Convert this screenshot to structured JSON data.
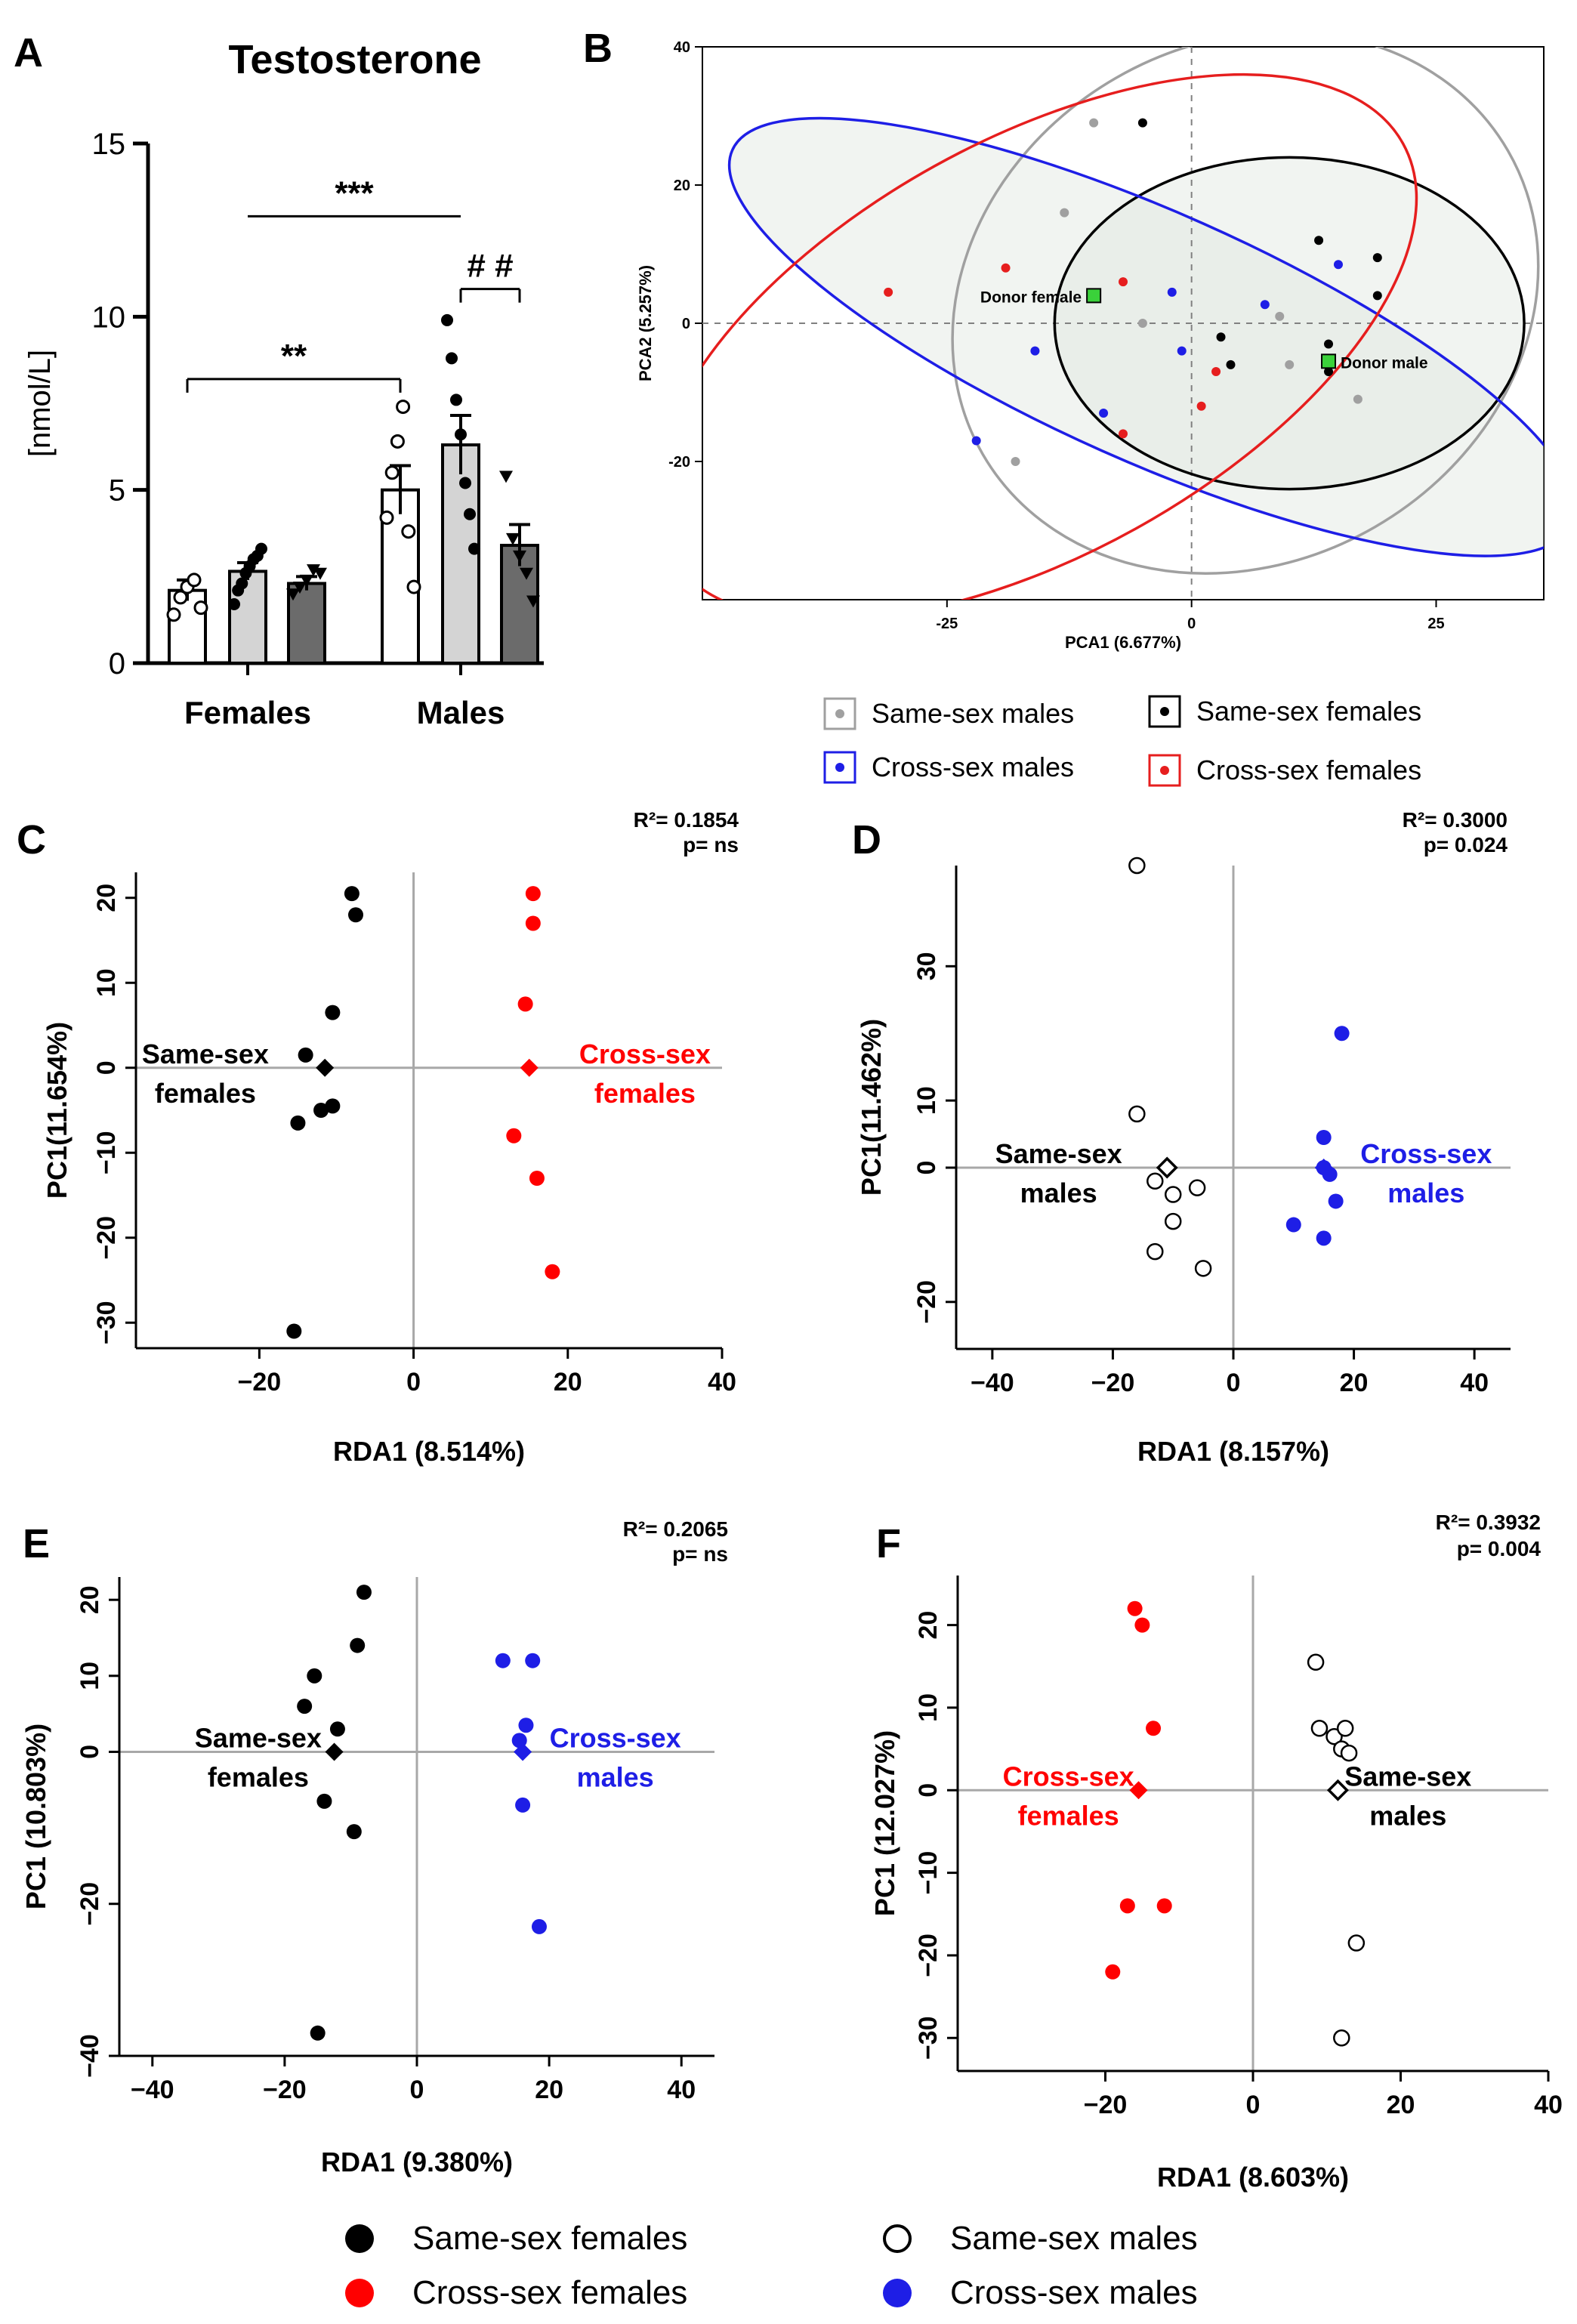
{
  "panel_letters": [
    "A",
    "B",
    "C",
    "D",
    "E",
    "F"
  ],
  "chart_data": [
    {
      "id": "A",
      "type": "bar",
      "title": "Testosterone",
      "ylabel": "[nmol/L]",
      "ylim": [
        0,
        15
      ],
      "yticks": [
        "0",
        "5",
        "10",
        "15"
      ],
      "groups": [
        "Females",
        "Males"
      ],
      "bars": [
        {
          "group": "Females",
          "fill": "#ffffff",
          "marker": "open-circle",
          "mean": 2.1,
          "sem": 0.3,
          "points": [
            1.4,
            1.9,
            2.2,
            2.4,
            1.6
          ]
        },
        {
          "group": "Females",
          "fill": "#d4d4d4",
          "marker": "filled-circle",
          "mean": 2.65,
          "sem": 0.25,
          "points": [
            1.7,
            2.1,
            2.3,
            2.6,
            2.8,
            3.0,
            3.1,
            3.3
          ]
        },
        {
          "group": "Females",
          "fill": "#6b6b6b",
          "marker": "triangle",
          "mean": 2.3,
          "sem": 0.2,
          "points": [
            2.0,
            2.2,
            2.4,
            2.7,
            2.6
          ]
        },
        {
          "group": "Males",
          "fill": "#ffffff",
          "marker": "open-circle",
          "mean": 5.0,
          "sem": 0.7,
          "points": [
            4.2,
            5.5,
            6.4,
            7.4,
            3.8,
            2.2
          ]
        },
        {
          "group": "Males",
          "fill": "#d4d4d4",
          "marker": "filled-circle",
          "mean": 6.3,
          "sem": 0.85,
          "points": [
            9.9,
            8.8,
            7.6,
            6.6,
            5.2,
            4.3,
            3.3
          ]
        },
        {
          "group": "Males",
          "fill": "#6b6b6b",
          "marker": "triangle",
          "mean": 3.4,
          "sem": 0.6,
          "points": [
            5.4,
            3.6,
            3.1,
            2.6,
            1.8
          ]
        }
      ],
      "annotations": [
        {
          "text": "***",
          "from": 1,
          "to": 4,
          "y": 12.9,
          "ticks": "none"
        },
        {
          "text": "**",
          "from": 0,
          "to": 3,
          "y": 8.2,
          "ticks": "down"
        },
        {
          "text": "# #",
          "from": 4,
          "to": 5,
          "y": 10.8,
          "ticks": "down",
          "short": true
        }
      ]
    },
    {
      "id": "B",
      "type": "scatter",
      "xlabel": "PCA1 (6.677%)",
      "ylabel": "PCA2 (5.257%)",
      "xlim": [
        -50,
        36
      ],
      "ylim": [
        -40,
        40
      ],
      "xticks": [
        "-25",
        "0",
        "25"
      ],
      "xtick_values": [
        -25,
        0,
        25
      ],
      "yticks": [
        "-20",
        "0",
        "20",
        "40"
      ],
      "ytick_values": [
        -20,
        0,
        20,
        40
      ],
      "series": [
        {
          "name": "Same-sex males",
          "color": "#a0a0a0",
          "points": [
            [
              -10,
              29
            ],
            [
              -13,
              16
            ],
            [
              -5,
              0
            ],
            [
              9,
              1
            ],
            [
              10,
              -6
            ],
            [
              17,
              -11
            ],
            [
              -18,
              -20
            ]
          ]
        },
        {
          "name": "Same-sex females",
          "color": "#000000",
          "points": [
            [
              -5,
              29
            ],
            [
              13,
              12
            ],
            [
              19,
              9.5
            ],
            [
              19,
              4
            ],
            [
              14,
              -3
            ],
            [
              3,
              -2
            ],
            [
              4,
              -6
            ],
            [
              14,
              -7
            ]
          ]
        },
        {
          "name": "Cross-sex males",
          "color": "#1e1ee6",
          "points": [
            [
              -2,
              4.5
            ],
            [
              7.5,
              2.7
            ],
            [
              15,
              8.5
            ],
            [
              -16,
              -4
            ],
            [
              -9,
              -13
            ],
            [
              -1,
              -4
            ],
            [
              -22,
              -17
            ]
          ]
        },
        {
          "name": "Cross-sex females",
          "color": "#e61e1e",
          "points": [
            [
              -31,
              4.5
            ],
            [
              -19,
              8
            ],
            [
              -7,
              6
            ],
            [
              2.5,
              -7
            ],
            [
              1,
              -12
            ],
            [
              -7,
              -16
            ]
          ]
        }
      ],
      "donors": [
        {
          "label": "Donor female",
          "x": -10,
          "y": 4
        },
        {
          "label": "Donor male",
          "x": 14,
          "y": -5.5
        }
      ],
      "ellipses": [
        {
          "series": "Same-sex males",
          "color": "#a0a0a0",
          "cx": 5.5,
          "cy": 3,
          "rx": 31,
          "ry": 37.5,
          "angle": -30
        },
        {
          "series": "Same-sex females",
          "color": "#000000",
          "cx": 10,
          "cy": 0,
          "rx": 24,
          "ry": 24,
          "angle": 0
        },
        {
          "series": "Cross-sex males",
          "color": "#1e1ee6",
          "cx": -4,
          "cy": -2,
          "rx": 47,
          "ry": 18,
          "angle": 24
        },
        {
          "series": "Cross-sex females",
          "color": "#e61e1e",
          "cx": -16,
          "cy": -3.5,
          "rx": 43,
          "ry": 30,
          "angle": -29
        }
      ],
      "legend": [
        {
          "label": "Same-sex males",
          "color": "#a0a0a0"
        },
        {
          "label": "Same-sex females",
          "color": "#000000"
        },
        {
          "label": "Cross-sex males",
          "color": "#1e1ee6"
        },
        {
          "label": "Cross-sex females",
          "color": "#e61e1e"
        }
      ]
    },
    {
      "id": "C",
      "type": "scatter",
      "xlabel": "RDA1 (8.514%)",
      "ylabel": "PC1(11.654%)",
      "xlim": [
        -36,
        40
      ],
      "ylim": [
        -33,
        23
      ],
      "xticks": [
        "−20",
        "0",
        "20",
        "40"
      ],
      "xtick_values": [
        -20,
        0,
        20,
        40
      ],
      "yticks": [
        "−30",
        "−20",
        "−10",
        "0",
        "10",
        "20"
      ],
      "ytick_values": [
        -30,
        -20,
        -10,
        0,
        10,
        20
      ],
      "stat_r2": "R²= 0.1854",
      "stat_p": "p= ns",
      "groups": [
        {
          "label1": "Same-sex",
          "label2": "females",
          "label_color": "#000000",
          "label_x": -27,
          "label_y": 0,
          "label_anchor": "middle",
          "style": "filled",
          "color": "#000000",
          "centroid": [
            -11.5,
            0
          ],
          "points": [
            [
              -8,
              20.5
            ],
            [
              -7.5,
              18
            ],
            [
              -10.5,
              6.5
            ],
            [
              -14,
              1.5
            ],
            [
              -10.5,
              -4.5
            ],
            [
              -12,
              -5
            ],
            [
              -15,
              -6.5
            ],
            [
              -15.5,
              -31
            ]
          ]
        },
        {
          "label1": "Cross-sex",
          "label2": "females",
          "label_color": "#ff0000",
          "label_x": 30,
          "label_y": 0,
          "label_anchor": "middle",
          "style": "filled",
          "color": "#ff0000",
          "centroid": [
            15,
            0
          ],
          "points": [
            [
              15.5,
              20.5
            ],
            [
              15.5,
              17
            ],
            [
              14.5,
              7.5
            ],
            [
              13,
              -8
            ],
            [
              16,
              -13
            ],
            [
              18,
              -24
            ]
          ]
        }
      ]
    },
    {
      "id": "D",
      "type": "scatter",
      "xlabel": "RDA1 (8.157%)",
      "ylabel": "PC1(11.462%)",
      "xlim": [
        -46,
        46
      ],
      "ylim": [
        -27,
        45
      ],
      "xticks": [
        "−40",
        "−20",
        "0",
        "20",
        "40"
      ],
      "xtick_values": [
        -40,
        -20,
        0,
        20,
        40
      ],
      "yticks": [
        "−20",
        "0",
        "10",
        "30"
      ],
      "ytick_values": [
        -20,
        0,
        10,
        30
      ],
      "stat_r2": "R²= 0.3000",
      "stat_p": "p= 0.024",
      "groups": [
        {
          "label1": "Same-sex",
          "label2": "males",
          "label_color": "#000000",
          "label_x": -29,
          "label_y": 0,
          "label_anchor": "middle",
          "style": "open",
          "color": "#000000",
          "centroid": [
            -11,
            0
          ],
          "points": [
            [
              -16,
              45
            ],
            [
              -16,
              8
            ],
            [
              -13,
              -2
            ],
            [
              -10,
              -4
            ],
            [
              -6,
              -3
            ],
            [
              -10,
              -8
            ],
            [
              -13,
              -12.5
            ],
            [
              -5,
              -15
            ]
          ]
        },
        {
          "label1": "Cross-sex",
          "label2": "males",
          "label_color": "#1e1ee6",
          "label_x": 32,
          "label_y": 0,
          "label_anchor": "middle",
          "style": "filled",
          "color": "#1e1ee6",
          "centroid": [
            15,
            0
          ],
          "points": [
            [
              18,
              20
            ],
            [
              15,
              4.5
            ],
            [
              15,
              0
            ],
            [
              16,
              -1
            ],
            [
              17,
              -5
            ],
            [
              10,
              -8.5
            ],
            [
              15,
              -10.5
            ]
          ]
        }
      ]
    },
    {
      "id": "E",
      "type": "scatter",
      "xlabel": "RDA1 (9.380%)",
      "ylabel": "PC1 (10.803%)",
      "xlim": [
        -45,
        45
      ],
      "ylim": [
        -40,
        23
      ],
      "xticks": [
        "−40",
        "−20",
        "0",
        "20",
        "40"
      ],
      "xtick_values": [
        -40,
        -20,
        0,
        20,
        40
      ],
      "yticks": [
        "−40",
        "−20",
        "0",
        "10",
        "20"
      ],
      "ytick_values": [
        -40,
        -20,
        0,
        10,
        20
      ],
      "stat_r2": "R²= 0.2065",
      "stat_p": "p= ns",
      "groups": [
        {
          "label1": "Same-sex",
          "label2": "females",
          "label_color": "#000000",
          "label_x": -24,
          "label_y": 0,
          "label_anchor": "middle",
          "style": "filled",
          "color": "#000000",
          "centroid": [
            -12.5,
            0
          ],
          "points": [
            [
              -8,
              21
            ],
            [
              -9,
              14
            ],
            [
              -15.5,
              10
            ],
            [
              -17,
              6
            ],
            [
              -12,
              3
            ],
            [
              -14,
              -6.5
            ],
            [
              -9.5,
              -10.5
            ],
            [
              -15,
              -37
            ]
          ]
        },
        {
          "label1": "Cross-sex",
          "label2": "males",
          "label_color": "#1e1ee6",
          "label_x": 30,
          "label_y": 0,
          "label_anchor": "middle",
          "style": "filled",
          "color": "#1e1ee6",
          "centroid": [
            16,
            0
          ],
          "points": [
            [
              13,
              12
            ],
            [
              17.5,
              12
            ],
            [
              16.5,
              3.5
            ],
            [
              15.5,
              1.5
            ],
            [
              16,
              -7
            ],
            [
              18.5,
              -23
            ]
          ]
        }
      ]
    },
    {
      "id": "F",
      "type": "scatter",
      "xlabel": "RDA1 (8.603%)",
      "ylabel": "PC1 (12.027%)",
      "xlim": [
        -40,
        40
      ],
      "ylim": [
        -34,
        26
      ],
      "xticks": [
        "−20",
        "0",
        "20",
        "40"
      ],
      "xtick_values": [
        -20,
        0,
        20,
        40
      ],
      "yticks": [
        "−30",
        "−20",
        "−10",
        "0",
        "10",
        "20"
      ],
      "ytick_values": [
        -30,
        -20,
        -10,
        0,
        10,
        20
      ],
      "stat_r2": "R²= 0.3932",
      "stat_p": "p= 0.004",
      "groups": [
        {
          "label1": "Cross-sex",
          "label2": "females",
          "label_color": "#ff0000",
          "label_x": -25,
          "label_y": 0,
          "label_anchor": "middle",
          "style": "filled",
          "color": "#ff0000",
          "centroid": [
            -15.5,
            0
          ],
          "points": [
            [
              -16,
              22
            ],
            [
              -15,
              20
            ],
            [
              -13.5,
              7.5
            ],
            [
              -17,
              -14
            ],
            [
              -12,
              -14
            ],
            [
              -19,
              -22
            ]
          ]
        },
        {
          "label1": "Same-sex",
          "label2": "males",
          "label_color": "#000000",
          "label_x": 21,
          "label_y": 0,
          "label_anchor": "middle",
          "style": "open",
          "color": "#000000",
          "centroid": [
            11.5,
            0
          ],
          "points": [
            [
              8.5,
              15.5
            ],
            [
              9,
              7.5
            ],
            [
              11,
              6.5
            ],
            [
              12.5,
              7.5
            ],
            [
              12,
              5
            ],
            [
              13,
              4.5
            ],
            [
              14,
              -18.5
            ],
            [
              12,
              -30
            ]
          ]
        }
      ]
    }
  ],
  "bottom_legend": [
    {
      "label": "Same-sex females",
      "style": "filled",
      "color": "#000000"
    },
    {
      "label": "Same-sex males",
      "style": "open",
      "color": "#000000"
    },
    {
      "label": "Cross-sex females",
      "style": "filled",
      "color": "#ff0000"
    },
    {
      "label": "Cross-sex males",
      "style": "filled",
      "color": "#1e1ee6"
    }
  ]
}
